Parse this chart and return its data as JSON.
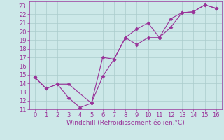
{
  "xlabel": "Windchill (Refroidissement éolien,°C)",
  "xlim": [
    -0.5,
    16.5
  ],
  "ylim": [
    11,
    23.5
  ],
  "yticks": [
    11,
    12,
    13,
    14,
    15,
    16,
    17,
    18,
    19,
    20,
    21,
    22,
    23
  ],
  "xticks": [
    0,
    1,
    2,
    3,
    4,
    5,
    6,
    7,
    8,
    9,
    10,
    11,
    12,
    13,
    14,
    15,
    16
  ],
  "line1_x": [
    0,
    1,
    2,
    3,
    4,
    5,
    6,
    7,
    8,
    9,
    10,
    11,
    12,
    13,
    14,
    15,
    16
  ],
  "line1_y": [
    14.7,
    13.4,
    13.9,
    12.3,
    11.2,
    11.7,
    14.8,
    16.8,
    19.3,
    20.3,
    21.0,
    19.3,
    21.5,
    22.2,
    22.3,
    23.1,
    22.7
  ],
  "line2_x": [
    0,
    1,
    2,
    3,
    5,
    6,
    7,
    8,
    9,
    10,
    11,
    12,
    13,
    14,
    15,
    16
  ],
  "line2_y": [
    14.7,
    13.4,
    13.9,
    13.9,
    11.7,
    17.0,
    16.8,
    19.3,
    18.5,
    19.3,
    19.3,
    20.5,
    22.2,
    22.3,
    23.1,
    22.7
  ],
  "line_color": "#993399",
  "bg_color": "#cce8e8",
  "grid_color": "#aacccc",
  "marker": "D",
  "marker_size": 2.5,
  "line_width": 0.8,
  "xlabel_fontsize": 6.5,
  "tick_fontsize": 6.0
}
